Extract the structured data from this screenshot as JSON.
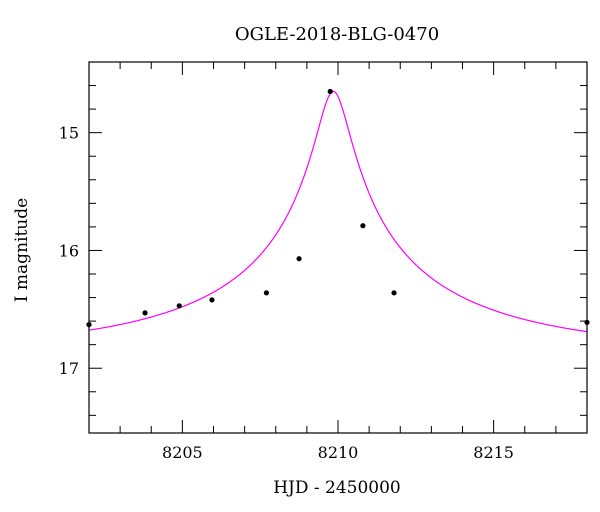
{
  "chart_data": {
    "type": "line",
    "title": "OGLE-2018-BLG-0470",
    "xlabel": "HJD - 2450000",
    "ylabel": "I magnitude",
    "xlim": [
      8202,
      8218
    ],
    "ylim": [
      17.55,
      14.4
    ],
    "y_inverted": true,
    "x_major_ticks": [
      8205,
      8210,
      8215
    ],
    "x_minor_step": 1,
    "y_major_ticks": [
      15,
      16,
      17
    ],
    "y_minor_step": 0.2,
    "grid": false,
    "series": [
      {
        "kind": "points",
        "color": "#000000",
        "x": [
          8202.0,
          8203.8,
          8204.9,
          8205.95,
          8207.7,
          8208.75,
          8209.75,
          8210.8,
          8211.8,
          8218.0
        ],
        "y": [
          16.63,
          16.53,
          16.47,
          16.42,
          16.36,
          16.07,
          14.65,
          15.79,
          16.36,
          16.61
        ]
      },
      {
        "kind": "model",
        "color": "#ff00ff",
        "model": {
          "t0": 8209.85,
          "u0": 0.05,
          "tE": 10.0,
          "baseline_mag": 16.87,
          "peak_mag": 14.65
        }
      }
    ]
  }
}
